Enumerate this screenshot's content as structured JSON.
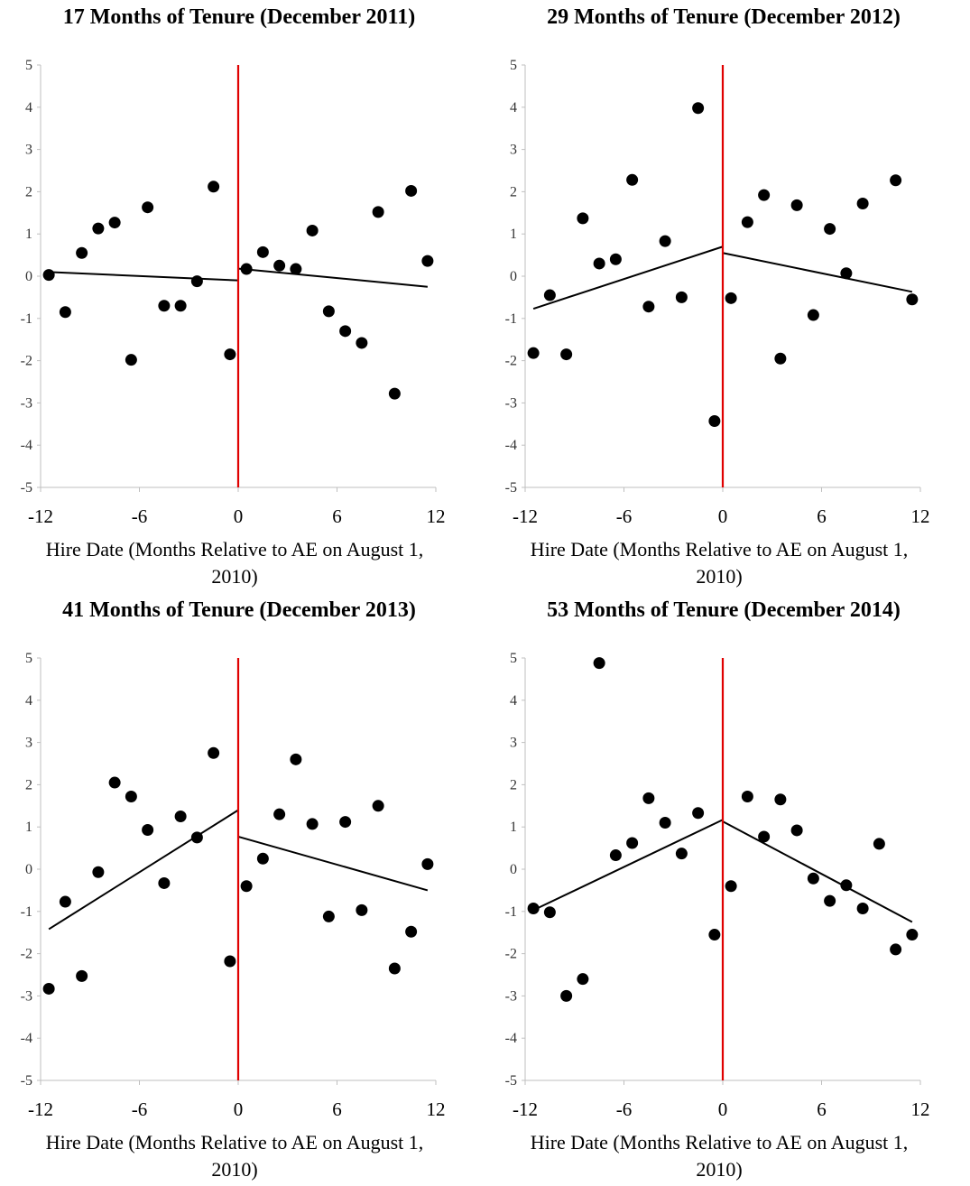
{
  "chart_data": [
    {
      "type": "scatter",
      "title": "17 Months of Tenure (December 2011)",
      "xlabel": "Hire Date (Months Relative to AE on August 1, 2010)",
      "ylabel": "",
      "xlim": [
        -12,
        12
      ],
      "ylim": [
        -5,
        5
      ],
      "xticks": [
        "-12",
        "-6",
        "0",
        "6",
        "12"
      ],
      "yticks": [
        "5",
        "4",
        "3",
        "2",
        "1",
        "0",
        "-1",
        "-2",
        "-3",
        "-4",
        "-5"
      ],
      "threshold_x": 0,
      "threshold_color": "#e00000",
      "points": [
        [
          -11.5,
          0.03
        ],
        [
          -10.5,
          -0.85
        ],
        [
          -9.5,
          0.55
        ],
        [
          -8.5,
          1.13
        ],
        [
          -7.5,
          1.27
        ],
        [
          -6.5,
          -1.98
        ],
        [
          -5.5,
          1.63
        ],
        [
          -4.5,
          -0.7
        ],
        [
          -3.5,
          -0.7
        ],
        [
          -2.5,
          -0.12
        ],
        [
          -1.5,
          2.12
        ],
        [
          -0.5,
          -1.85
        ],
        [
          0.5,
          0.17
        ],
        [
          1.5,
          0.57
        ],
        [
          2.5,
          0.25
        ],
        [
          3.5,
          0.17
        ],
        [
          4.5,
          1.08
        ],
        [
          5.5,
          -0.83
        ],
        [
          6.5,
          -1.3
        ],
        [
          7.5,
          -1.58
        ],
        [
          8.5,
          1.52
        ],
        [
          9.5,
          -2.78
        ],
        [
          10.5,
          2.02
        ],
        [
          11.5,
          0.36
        ]
      ],
      "fit_left": [
        [
          -11.5,
          0.1
        ],
        [
          0,
          -0.1
        ]
      ],
      "fit_right": [
        [
          0,
          0.18
        ],
        [
          11.5,
          -0.25
        ]
      ]
    },
    {
      "type": "scatter",
      "title": "29 Months of Tenure (December 2012)",
      "xlabel": "Hire Date (Months Relative to AE on August 1, 2010)",
      "ylabel": "",
      "xlim": [
        -12,
        12
      ],
      "ylim": [
        -5,
        5
      ],
      "xticks": [
        "-12",
        "-6",
        "0",
        "6",
        "12"
      ],
      "yticks": [
        "5",
        "4",
        "3",
        "2",
        "1",
        "0",
        "-1",
        "-2",
        "-3",
        "-4",
        "-5"
      ],
      "threshold_x": 0,
      "threshold_color": "#e00000",
      "points": [
        [
          -11.5,
          -1.82
        ],
        [
          -10.5,
          -0.45
        ],
        [
          -9.5,
          -1.85
        ],
        [
          -8.5,
          1.37
        ],
        [
          -7.5,
          0.3
        ],
        [
          -6.5,
          0.4
        ],
        [
          -5.5,
          2.28
        ],
        [
          -4.5,
          -0.72
        ],
        [
          -3.5,
          0.83
        ],
        [
          -2.5,
          -0.5
        ],
        [
          -1.5,
          3.98
        ],
        [
          -0.5,
          -3.43
        ],
        [
          0.5,
          -0.52
        ],
        [
          1.5,
          1.28
        ],
        [
          2.5,
          1.92
        ],
        [
          3.5,
          -1.95
        ],
        [
          4.5,
          1.68
        ],
        [
          5.5,
          -0.92
        ],
        [
          6.5,
          1.12
        ],
        [
          7.5,
          0.07
        ],
        [
          8.5,
          1.72
        ],
        [
          10.5,
          2.27
        ],
        [
          11.5,
          -0.55
        ]
      ],
      "fit_left": [
        [
          -11.5,
          -0.77
        ],
        [
          0,
          0.7
        ]
      ],
      "fit_right": [
        [
          0,
          0.55
        ],
        [
          11.5,
          -0.37
        ]
      ]
    },
    {
      "type": "scatter",
      "title": "41 Months of Tenure (December 2013)",
      "xlabel": "Hire Date (Months Relative to AE on August 1, 2010)",
      "ylabel": "",
      "xlim": [
        -12,
        12
      ],
      "ylim": [
        -5,
        5
      ],
      "xticks": [
        "-12",
        "-6",
        "0",
        "6",
        "12"
      ],
      "yticks": [
        "5",
        "4",
        "3",
        "2",
        "1",
        "0",
        "-1",
        "-2",
        "-3",
        "-4",
        "-5"
      ],
      "threshold_x": 0,
      "threshold_color": "#e00000",
      "points": [
        [
          -11.5,
          -2.83
        ],
        [
          -10.5,
          -0.77
        ],
        [
          -9.5,
          -2.53
        ],
        [
          -8.5,
          -0.07
        ],
        [
          -7.5,
          2.05
        ],
        [
          -6.5,
          1.72
        ],
        [
          -5.5,
          0.93
        ],
        [
          -4.5,
          -0.33
        ],
        [
          -3.5,
          1.25
        ],
        [
          -2.5,
          0.75
        ],
        [
          -1.5,
          2.75
        ],
        [
          -0.5,
          -2.18
        ],
        [
          0.5,
          -0.4
        ],
        [
          1.5,
          0.25
        ],
        [
          2.5,
          1.3
        ],
        [
          3.5,
          2.6
        ],
        [
          4.5,
          1.07
        ],
        [
          5.5,
          -1.12
        ],
        [
          6.5,
          1.12
        ],
        [
          7.5,
          -0.97
        ],
        [
          8.5,
          1.5
        ],
        [
          9.5,
          -2.35
        ],
        [
          10.5,
          -1.48
        ],
        [
          11.5,
          0.12
        ]
      ],
      "fit_left": [
        [
          -11.5,
          -1.42
        ],
        [
          0,
          1.4
        ]
      ],
      "fit_right": [
        [
          0,
          0.77
        ],
        [
          11.5,
          -0.5
        ]
      ]
    },
    {
      "type": "scatter",
      "title": "53 Months of Tenure (December 2014)",
      "xlabel": "Hire Date (Months Relative to AE on August 1, 2010)",
      "ylabel": "",
      "xlim": [
        -12,
        12
      ],
      "ylim": [
        -5,
        5
      ],
      "xticks": [
        "-12",
        "-6",
        "0",
        "6",
        "12"
      ],
      "yticks": [
        "5",
        "4",
        "3",
        "2",
        "1",
        "0",
        "-1",
        "-2",
        "-3",
        "-4",
        "-5"
      ],
      "threshold_x": 0,
      "threshold_color": "#e00000",
      "points": [
        [
          -11.5,
          -0.93
        ],
        [
          -10.5,
          -1.02
        ],
        [
          -9.5,
          -3.0
        ],
        [
          -8.5,
          -2.6
        ],
        [
          -7.5,
          4.88
        ],
        [
          -6.5,
          0.33
        ],
        [
          -5.5,
          0.62
        ],
        [
          -4.5,
          1.68
        ],
        [
          -3.5,
          1.1
        ],
        [
          -2.5,
          0.37
        ],
        [
          -1.5,
          1.33
        ],
        [
          -0.5,
          -1.55
        ],
        [
          0.5,
          -0.4
        ],
        [
          1.5,
          1.72
        ],
        [
          2.5,
          0.77
        ],
        [
          3.5,
          1.65
        ],
        [
          4.5,
          0.92
        ],
        [
          5.5,
          -0.22
        ],
        [
          6.5,
          -0.75
        ],
        [
          7.5,
          -0.38
        ],
        [
          8.5,
          -0.93
        ],
        [
          9.5,
          0.6
        ],
        [
          10.5,
          -1.9
        ],
        [
          11.5,
          -1.55
        ]
      ],
      "fit_left": [
        [
          -11.5,
          -0.97
        ],
        [
          0,
          1.17
        ]
      ],
      "fit_right": [
        [
          0,
          1.13
        ],
        [
          11.5,
          -1.25
        ]
      ]
    }
  ]
}
